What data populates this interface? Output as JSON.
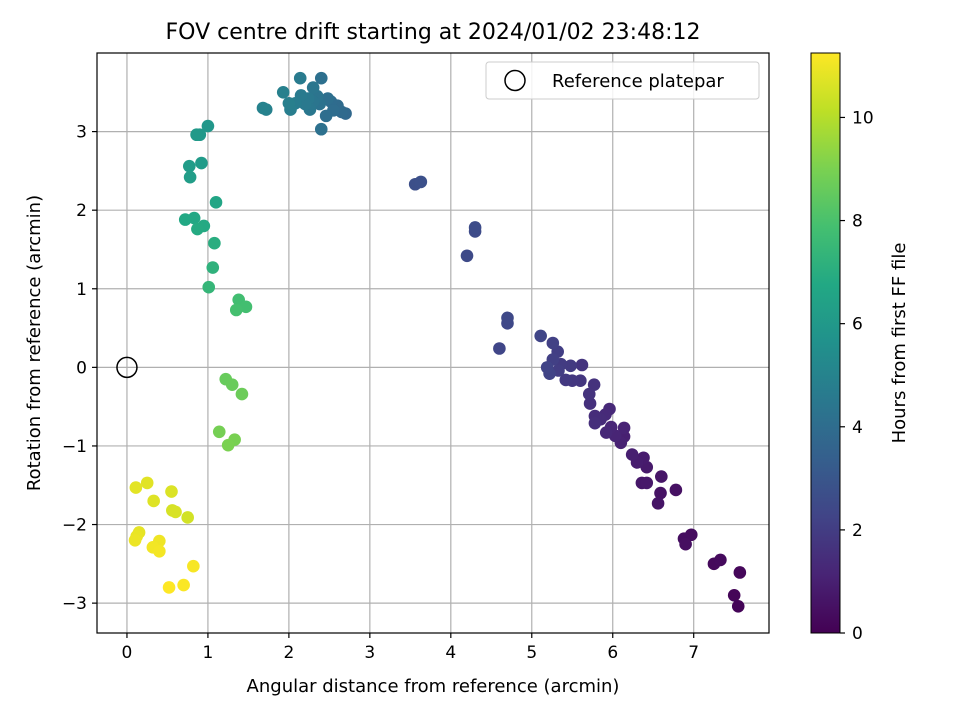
{
  "chart_data": {
    "type": "scatter",
    "title": "FOV centre drift starting at 2024/01/02 23:48:12",
    "xlabel": "Angular distance from reference (arcmin)",
    "ylabel": "Rotation from reference (arcmin)",
    "xlim": [
      -0.37,
      7.93
    ],
    "ylim": [
      -3.38,
      4.0
    ],
    "xticks": [
      0,
      1,
      2,
      3,
      4,
      5,
      6,
      7
    ],
    "yticks": [
      -3,
      -2,
      -1,
      0,
      1,
      2,
      3
    ],
    "grid": true,
    "legend": {
      "location": "top-right",
      "entries": [
        "Reference platepar"
      ]
    },
    "reference_point": {
      "x": 0,
      "y": 0,
      "label": "Reference platepar"
    },
    "colorbar": {
      "label": "Hours from first FF file",
      "colormap": "viridis",
      "range": [
        0,
        11.25
      ],
      "ticks": [
        0,
        2,
        4,
        6,
        8,
        10
      ]
    },
    "points": [
      {
        "x": 7.55,
        "y": -3.04,
        "c": 0.1
      },
      {
        "x": 7.5,
        "y": -2.9,
        "c": 0.15
      },
      {
        "x": 7.57,
        "y": -2.61,
        "c": 0.2
      },
      {
        "x": 7.25,
        "y": -2.5,
        "c": 0.25
      },
      {
        "x": 7.33,
        "y": -2.45,
        "c": 0.3
      },
      {
        "x": 6.97,
        "y": -2.13,
        "c": 0.35
      },
      {
        "x": 6.88,
        "y": -2.18,
        "c": 0.4
      },
      {
        "x": 6.9,
        "y": -2.25,
        "c": 0.45
      },
      {
        "x": 6.78,
        "y": -1.56,
        "c": 0.5
      },
      {
        "x": 6.59,
        "y": -1.6,
        "c": 0.55
      },
      {
        "x": 6.56,
        "y": -1.73,
        "c": 0.6
      },
      {
        "x": 6.6,
        "y": -1.39,
        "c": 0.65
      },
      {
        "x": 6.36,
        "y": -1.47,
        "c": 0.7
      },
      {
        "x": 6.42,
        "y": -1.47,
        "c": 0.75
      },
      {
        "x": 6.42,
        "y": -1.27,
        "c": 0.8
      },
      {
        "x": 6.38,
        "y": -1.15,
        "c": 0.85
      },
      {
        "x": 6.3,
        "y": -1.21,
        "c": 0.9
      },
      {
        "x": 6.24,
        "y": -1.11,
        "c": 0.95
      },
      {
        "x": 6.14,
        "y": -0.88,
        "c": 1.0
      },
      {
        "x": 6.1,
        "y": -0.96,
        "c": 1.05
      },
      {
        "x": 6.14,
        "y": -0.77,
        "c": 1.1
      },
      {
        "x": 6.03,
        "y": -0.87,
        "c": 1.15
      },
      {
        "x": 5.98,
        "y": -0.76,
        "c": 1.2
      },
      {
        "x": 5.92,
        "y": -0.83,
        "c": 1.25
      },
      {
        "x": 5.96,
        "y": -0.53,
        "c": 1.3
      },
      {
        "x": 5.91,
        "y": -0.6,
        "c": 1.35
      },
      {
        "x": 5.85,
        "y": -0.66,
        "c": 1.4
      },
      {
        "x": 5.78,
        "y": -0.62,
        "c": 1.45
      },
      {
        "x": 5.78,
        "y": -0.71,
        "c": 1.5
      },
      {
        "x": 5.72,
        "y": -0.46,
        "c": 1.55
      },
      {
        "x": 5.77,
        "y": -0.22,
        "c": 1.6
      },
      {
        "x": 5.71,
        "y": -0.34,
        "c": 1.65
      },
      {
        "x": 5.62,
        "y": 0.03,
        "c": 1.7
      },
      {
        "x": 5.6,
        "y": -0.17,
        "c": 1.75
      },
      {
        "x": 5.5,
        "y": -0.17,
        "c": 1.8
      },
      {
        "x": 5.42,
        "y": -0.16,
        "c": 1.85
      },
      {
        "x": 5.48,
        "y": 0.02,
        "c": 1.9
      },
      {
        "x": 5.36,
        "y": 0.04,
        "c": 1.95
      },
      {
        "x": 5.33,
        "y": -0.04,
        "c": 2.0
      },
      {
        "x": 5.32,
        "y": 0.2,
        "c": 2.05
      },
      {
        "x": 5.26,
        "y": 0.1,
        "c": 2.1
      },
      {
        "x": 5.26,
        "y": 0.31,
        "c": 2.15
      },
      {
        "x": 5.22,
        "y": -0.08,
        "c": 2.2
      },
      {
        "x": 5.19,
        "y": 0.0,
        "c": 2.25
      },
      {
        "x": 5.11,
        "y": 0.4,
        "c": 2.3
      },
      {
        "x": 4.6,
        "y": 0.24,
        "c": 2.35
      },
      {
        "x": 4.7,
        "y": 0.56,
        "c": 2.4
      },
      {
        "x": 4.7,
        "y": 0.63,
        "c": 2.45
      },
      {
        "x": 4.2,
        "y": 1.42,
        "c": 2.5
      },
      {
        "x": 4.3,
        "y": 1.73,
        "c": 2.55
      },
      {
        "x": 4.3,
        "y": 1.78,
        "c": 2.6
      },
      {
        "x": 3.56,
        "y": 2.33,
        "c": 2.7
      },
      {
        "x": 3.63,
        "y": 2.36,
        "c": 2.75
      },
      {
        "x": 2.7,
        "y": 3.23,
        "c": 3.8
      },
      {
        "x": 2.65,
        "y": 3.25,
        "c": 3.85
      },
      {
        "x": 2.6,
        "y": 3.33,
        "c": 3.9
      },
      {
        "x": 2.52,
        "y": 3.38,
        "c": 3.95
      },
      {
        "x": 2.55,
        "y": 3.27,
        "c": 4.0
      },
      {
        "x": 2.46,
        "y": 3.2,
        "c": 4.05
      },
      {
        "x": 2.48,
        "y": 3.42,
        "c": 4.1
      },
      {
        "x": 2.4,
        "y": 3.68,
        "c": 4.15
      },
      {
        "x": 2.4,
        "y": 3.03,
        "c": 4.2
      },
      {
        "x": 2.38,
        "y": 3.35,
        "c": 4.25
      },
      {
        "x": 2.35,
        "y": 3.45,
        "c": 4.3
      },
      {
        "x": 2.3,
        "y": 3.38,
        "c": 4.35
      },
      {
        "x": 2.3,
        "y": 3.56,
        "c": 4.4
      },
      {
        "x": 2.26,
        "y": 3.28,
        "c": 4.45
      },
      {
        "x": 2.24,
        "y": 3.42,
        "c": 4.5
      },
      {
        "x": 2.2,
        "y": 3.35,
        "c": 4.55
      },
      {
        "x": 2.15,
        "y": 3.46,
        "c": 4.6
      },
      {
        "x": 2.14,
        "y": 3.68,
        "c": 4.65
      },
      {
        "x": 2.08,
        "y": 3.36,
        "c": 4.7
      },
      {
        "x": 2.02,
        "y": 3.28,
        "c": 4.75
      },
      {
        "x": 2.0,
        "y": 3.36,
        "c": 4.8
      },
      {
        "x": 1.93,
        "y": 3.5,
        "c": 4.85
      },
      {
        "x": 1.72,
        "y": 3.28,
        "c": 4.9
      },
      {
        "x": 1.68,
        "y": 3.3,
        "c": 4.95
      },
      {
        "x": 1.0,
        "y": 3.07,
        "c": 5.9
      },
      {
        "x": 0.9,
        "y": 2.96,
        "c": 5.95
      },
      {
        "x": 0.86,
        "y": 2.96,
        "c": 6.0
      },
      {
        "x": 0.92,
        "y": 2.6,
        "c": 6.1
      },
      {
        "x": 0.77,
        "y": 2.56,
        "c": 6.15
      },
      {
        "x": 0.78,
        "y": 2.42,
        "c": 6.2
      },
      {
        "x": 1.1,
        "y": 2.1,
        "c": 6.6
      },
      {
        "x": 0.83,
        "y": 1.9,
        "c": 6.7
      },
      {
        "x": 0.72,
        "y": 1.88,
        "c": 6.75
      },
      {
        "x": 0.95,
        "y": 1.8,
        "c": 6.8
      },
      {
        "x": 0.87,
        "y": 1.76,
        "c": 6.85
      },
      {
        "x": 1.08,
        "y": 1.58,
        "c": 7.0
      },
      {
        "x": 1.06,
        "y": 1.27,
        "c": 7.2
      },
      {
        "x": 1.01,
        "y": 1.02,
        "c": 7.4
      },
      {
        "x": 1.38,
        "y": 0.86,
        "c": 7.8
      },
      {
        "x": 1.47,
        "y": 0.77,
        "c": 7.85
      },
      {
        "x": 1.35,
        "y": 0.73,
        "c": 7.9
      },
      {
        "x": 1.22,
        "y": -0.15,
        "c": 8.6
      },
      {
        "x": 1.3,
        "y": -0.22,
        "c": 8.65
      },
      {
        "x": 1.42,
        "y": -0.34,
        "c": 8.7
      },
      {
        "x": 1.14,
        "y": -0.82,
        "c": 8.9
      },
      {
        "x": 1.33,
        "y": -0.92,
        "c": 8.95
      },
      {
        "x": 1.25,
        "y": -0.99,
        "c": 9.0
      },
      {
        "x": 0.75,
        "y": -1.91,
        "c": 10.5
      },
      {
        "x": 0.56,
        "y": -1.82,
        "c": 10.55
      },
      {
        "x": 0.6,
        "y": -1.84,
        "c": 10.6
      },
      {
        "x": 0.55,
        "y": -1.58,
        "c": 10.65
      },
      {
        "x": 0.33,
        "y": -1.7,
        "c": 10.7
      },
      {
        "x": 0.25,
        "y": -1.47,
        "c": 10.75
      },
      {
        "x": 0.11,
        "y": -1.53,
        "c": 10.8
      },
      {
        "x": 0.15,
        "y": -2.1,
        "c": 10.85
      },
      {
        "x": 0.12,
        "y": -2.15,
        "c": 10.9
      },
      {
        "x": 0.1,
        "y": -2.2,
        "c": 10.95
      },
      {
        "x": 0.4,
        "y": -2.21,
        "c": 11.0
      },
      {
        "x": 0.32,
        "y": -2.29,
        "c": 11.05
      },
      {
        "x": 0.4,
        "y": -2.34,
        "c": 11.1
      },
      {
        "x": 0.82,
        "y": -2.53,
        "c": 11.15
      },
      {
        "x": 0.7,
        "y": -2.77,
        "c": 11.2
      },
      {
        "x": 0.52,
        "y": -2.8,
        "c": 11.25
      }
    ]
  }
}
